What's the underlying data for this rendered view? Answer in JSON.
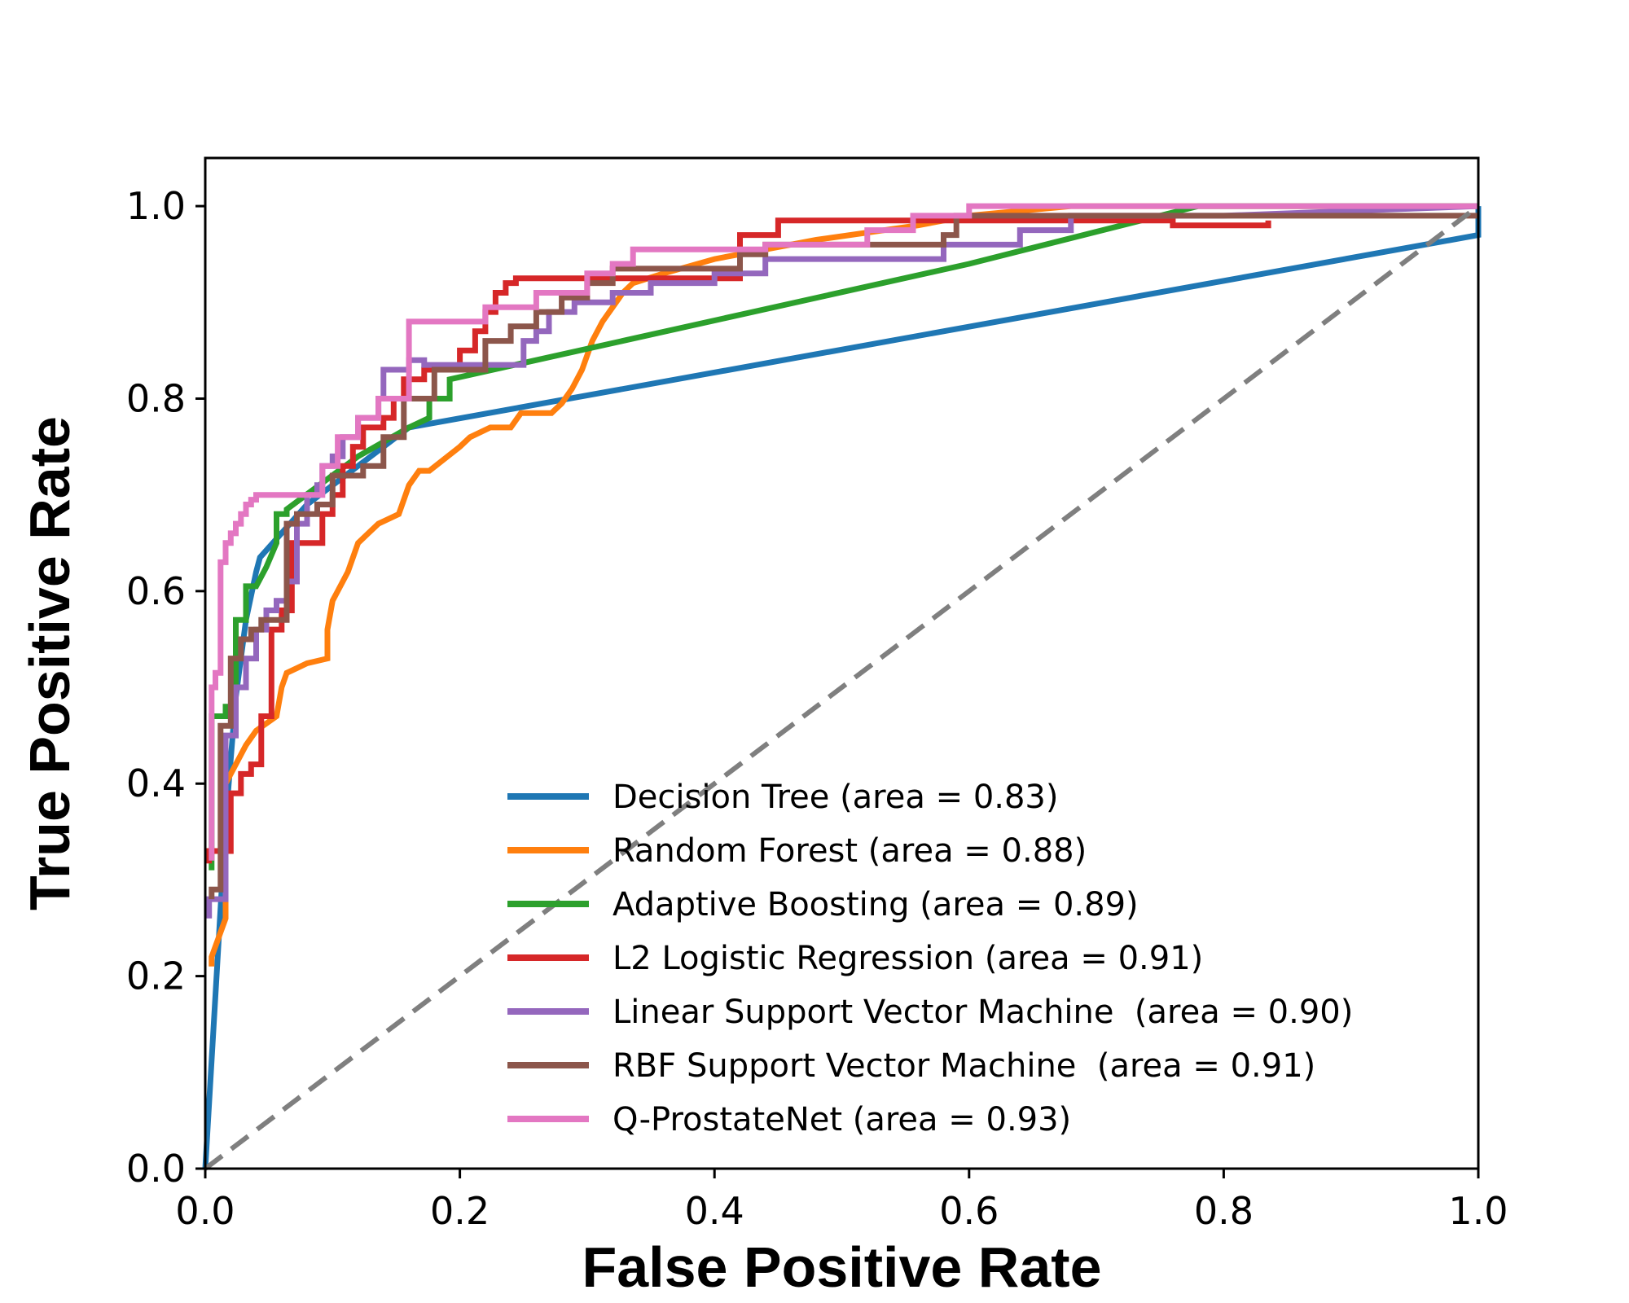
{
  "chart_data": {
    "type": "line",
    "xlabel": "False Positive Rate",
    "ylabel": "True Positive Rate",
    "xlim": [
      0.0,
      1.0
    ],
    "ylim": [
      0.0,
      1.05
    ],
    "xticks": [
      "0.0",
      "0.2",
      "0.4",
      "0.6",
      "0.8",
      "1.0"
    ],
    "yticks": [
      "0.0",
      "0.2",
      "0.4",
      "0.6",
      "0.8",
      "1.0"
    ],
    "grid": false,
    "legend_position": "lower-right",
    "series": [
      {
        "name": "Decision Tree (area = 0.83)",
        "color": "#1f77b4",
        "x": [
          0.0,
          0.008,
          0.016,
          0.024,
          0.032,
          0.04,
          0.043,
          0.08,
          0.16,
          1.0,
          1.0
        ],
        "y": [
          0.0,
          0.18,
          0.36,
          0.49,
          0.57,
          0.62,
          0.635,
          0.69,
          0.77,
          0.97,
          1.0
        ]
      },
      {
        "name": "Random Forest (area = 0.88)",
        "color": "#ff7f0e",
        "x": [
          0.005,
          0.005,
          0.016,
          0.016,
          0.024,
          0.032,
          0.04,
          0.056,
          0.06,
          0.064,
          0.072,
          0.08,
          0.096,
          0.096,
          0.1,
          0.104,
          0.112,
          0.12,
          0.128,
          0.136,
          0.152,
          0.16,
          0.168,
          0.176,
          0.2,
          0.208,
          0.224,
          0.24,
          0.248,
          0.272,
          0.28,
          0.288,
          0.296,
          0.3,
          0.304,
          0.312,
          0.32,
          0.328,
          0.336,
          0.36,
          0.4,
          0.44,
          0.48,
          0.56,
          0.6,
          0.68,
          0.76,
          0.84,
          0.92,
          1.0
        ],
        "y": [
          0.21,
          0.22,
          0.26,
          0.4,
          0.42,
          0.44,
          0.455,
          0.47,
          0.5,
          0.515,
          0.52,
          0.525,
          0.53,
          0.56,
          0.59,
          0.6,
          0.62,
          0.65,
          0.66,
          0.67,
          0.68,
          0.71,
          0.725,
          0.725,
          0.75,
          0.76,
          0.77,
          0.77,
          0.785,
          0.785,
          0.795,
          0.81,
          0.83,
          0.845,
          0.86,
          0.88,
          0.895,
          0.91,
          0.92,
          0.93,
          0.945,
          0.955,
          0.965,
          0.98,
          0.99,
          1.0,
          1.0,
          1.0,
          1.0,
          1.0
        ]
      },
      {
        "name": "Adaptive Boosting (area = 0.89)",
        "color": "#2ca02c",
        "x": [
          0.005,
          0.005,
          0.016,
          0.016,
          0.024,
          0.024,
          0.032,
          0.032,
          0.04,
          0.048,
          0.056,
          0.056,
          0.064,
          0.064,
          0.12,
          0.16,
          0.176,
          0.176,
          0.192,
          0.192,
          0.6,
          0.78,
          1.0
        ],
        "y": [
          0.31,
          0.47,
          0.47,
          0.48,
          0.48,
          0.57,
          0.57,
          0.605,
          0.605,
          0.625,
          0.65,
          0.68,
          0.68,
          0.685,
          0.74,
          0.77,
          0.78,
          0.8,
          0.8,
          0.82,
          0.94,
          1.0,
          1.0
        ]
      },
      {
        "name": "L2 Logistic Regression (area = 0.91)",
        "color": "#d62728",
        "x": [
          0.0,
          0.003,
          0.003,
          0.02,
          0.02,
          0.028,
          0.028,
          0.036,
          0.036,
          0.044,
          0.044,
          0.052,
          0.052,
          0.06,
          0.06,
          0.068,
          0.068,
          0.092,
          0.092,
          0.1,
          0.1,
          0.108,
          0.108,
          0.116,
          0.116,
          0.124,
          0.124,
          0.14,
          0.14,
          0.148,
          0.148,
          0.156,
          0.156,
          0.172,
          0.172,
          0.2,
          0.2,
          0.212,
          0.212,
          0.22,
          0.22,
          0.228,
          0.228,
          0.236,
          0.236,
          0.244,
          0.244,
          0.42,
          0.42,
          0.45,
          0.45,
          0.6,
          0.6,
          0.76,
          0.76,
          0.835,
          0.835
        ],
        "y": [
          0.32,
          0.32,
          0.33,
          0.33,
          0.39,
          0.39,
          0.41,
          0.41,
          0.42,
          0.42,
          0.47,
          0.47,
          0.56,
          0.56,
          0.58,
          0.58,
          0.65,
          0.65,
          0.68,
          0.68,
          0.7,
          0.7,
          0.73,
          0.73,
          0.75,
          0.75,
          0.77,
          0.77,
          0.78,
          0.78,
          0.8,
          0.8,
          0.82,
          0.82,
          0.83,
          0.83,
          0.85,
          0.85,
          0.87,
          0.87,
          0.89,
          0.89,
          0.91,
          0.91,
          0.92,
          0.92,
          0.925,
          0.925,
          0.97,
          0.97,
          0.985,
          0.985,
          0.985,
          0.985,
          0.98,
          0.98,
          0.985
        ]
      },
      {
        "name": "Linear Support Vector Machine  (area = 0.90)",
        "color": "#9467bd",
        "x": [
          0.003,
          0.003,
          0.016,
          0.016,
          0.024,
          0.024,
          0.032,
          0.032,
          0.04,
          0.04,
          0.048,
          0.048,
          0.056,
          0.056,
          0.064,
          0.064,
          0.072,
          0.072,
          0.08,
          0.08,
          0.088,
          0.088,
          0.092,
          0.092,
          0.1,
          0.1,
          0.108,
          0.108,
          0.12,
          0.12,
          0.136,
          0.136,
          0.14,
          0.14,
          0.16,
          0.16,
          0.172,
          0.172,
          0.25,
          0.25,
          0.26,
          0.26,
          0.27,
          0.27,
          0.29,
          0.29,
          0.32,
          0.32,
          0.35,
          0.35,
          0.4,
          0.4,
          0.44,
          0.44,
          0.58,
          0.58,
          0.64,
          0.64,
          0.68,
          0.68,
          0.8,
          1.0
        ],
        "y": [
          0.26,
          0.28,
          0.28,
          0.45,
          0.45,
          0.5,
          0.5,
          0.53,
          0.53,
          0.56,
          0.56,
          0.58,
          0.58,
          0.59,
          0.59,
          0.61,
          0.61,
          0.67,
          0.67,
          0.7,
          0.7,
          0.71,
          0.71,
          0.73,
          0.73,
          0.74,
          0.74,
          0.76,
          0.76,
          0.78,
          0.78,
          0.8,
          0.8,
          0.83,
          0.83,
          0.84,
          0.84,
          0.835,
          0.835,
          0.86,
          0.86,
          0.87,
          0.87,
          0.89,
          0.89,
          0.9,
          0.9,
          0.91,
          0.91,
          0.92,
          0.92,
          0.93,
          0.93,
          0.945,
          0.945,
          0.96,
          0.96,
          0.975,
          0.975,
          0.99,
          0.99,
          1.0
        ]
      },
      {
        "name": "RBF Support Vector Machine  (area = 0.91)",
        "color": "#8c564b",
        "x": [
          0.005,
          0.005,
          0.012,
          0.012,
          0.02,
          0.02,
          0.028,
          0.028,
          0.036,
          0.036,
          0.044,
          0.044,
          0.064,
          0.064,
          0.072,
          0.072,
          0.088,
          0.088,
          0.1,
          0.1,
          0.124,
          0.124,
          0.14,
          0.14,
          0.156,
          0.156,
          0.18,
          0.18,
          0.22,
          0.22,
          0.24,
          0.24,
          0.26,
          0.26,
          0.28,
          0.28,
          0.3,
          0.3,
          0.32,
          0.32,
          0.42,
          0.42,
          0.44,
          0.44,
          0.58,
          0.58,
          0.59,
          0.59,
          1.0
        ],
        "y": [
          0.28,
          0.29,
          0.29,
          0.46,
          0.46,
          0.53,
          0.53,
          0.55,
          0.55,
          0.56,
          0.56,
          0.57,
          0.57,
          0.67,
          0.67,
          0.68,
          0.68,
          0.69,
          0.69,
          0.72,
          0.72,
          0.73,
          0.73,
          0.76,
          0.76,
          0.8,
          0.8,
          0.83,
          0.83,
          0.86,
          0.86,
          0.875,
          0.875,
          0.89,
          0.89,
          0.905,
          0.905,
          0.92,
          0.92,
          0.935,
          0.935,
          0.95,
          0.95,
          0.96,
          0.96,
          0.97,
          0.97,
          0.99,
          0.99
        ]
      },
      {
        "name": "Q-ProstateNet (area = 0.93)",
        "color": "#e377c2",
        "x": [
          0.005,
          0.005,
          0.008,
          0.008,
          0.012,
          0.012,
          0.016,
          0.016,
          0.02,
          0.02,
          0.024,
          0.024,
          0.028,
          0.028,
          0.032,
          0.032,
          0.036,
          0.036,
          0.04,
          0.04,
          0.092,
          0.092,
          0.104,
          0.104,
          0.12,
          0.12,
          0.136,
          0.136,
          0.16,
          0.16,
          0.22,
          0.22,
          0.26,
          0.26,
          0.3,
          0.3,
          0.32,
          0.32,
          0.336,
          0.336,
          0.44,
          0.44,
          0.52,
          0.52,
          0.556,
          0.556,
          0.6,
          0.6,
          1.0
        ],
        "y": [
          0.32,
          0.5,
          0.5,
          0.515,
          0.515,
          0.63,
          0.63,
          0.65,
          0.65,
          0.66,
          0.66,
          0.67,
          0.67,
          0.68,
          0.68,
          0.69,
          0.69,
          0.695,
          0.695,
          0.7,
          0.7,
          0.73,
          0.73,
          0.76,
          0.76,
          0.78,
          0.78,
          0.8,
          0.8,
          0.88,
          0.88,
          0.895,
          0.895,
          0.91,
          0.91,
          0.93,
          0.93,
          0.94,
          0.94,
          0.955,
          0.955,
          0.96,
          0.96,
          0.975,
          0.975,
          0.99,
          0.99,
          1.0,
          1.0
        ]
      }
    ],
    "reference_line": {
      "x": [
        0.0,
        1.0
      ],
      "y": [
        0.0,
        1.0
      ],
      "color": "#7f7f7f",
      "style": "dashed"
    }
  }
}
